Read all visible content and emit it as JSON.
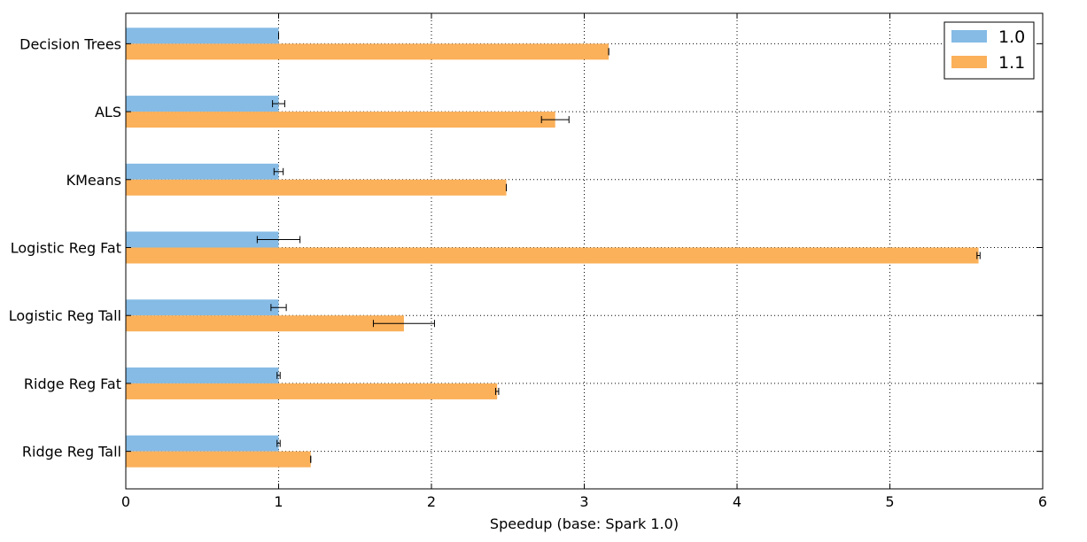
{
  "chart_data": {
    "type": "bar",
    "orientation": "horizontal",
    "categories": [
      "Decision Trees",
      "ALS",
      "KMeans",
      "Logistic Reg Fat",
      "Logistic Reg Tall",
      "Ridge Reg Fat",
      "Ridge Reg Tall"
    ],
    "series": [
      {
        "name": "1.0",
        "color": "#85bbe5",
        "values": [
          1.0,
          1.0,
          1.0,
          1.0,
          1.0,
          1.0,
          1.0
        ],
        "errors": [
          0.0,
          0.04,
          0.03,
          0.14,
          0.05,
          0.01,
          0.01
        ]
      },
      {
        "name": "1.1",
        "color": "#fbb05a",
        "values": [
          3.16,
          2.81,
          2.49,
          5.58,
          1.82,
          2.43,
          1.21
        ],
        "errors": [
          0.0,
          0.09,
          0.0,
          0.01,
          0.2,
          0.01,
          0.0
        ]
      }
    ],
    "xlabel": "Speedup (base: Spark 1.0)",
    "ylabel": "",
    "xlim": [
      0,
      6
    ],
    "xticks": [
      "0",
      "1",
      "2",
      "3",
      "4",
      "5",
      "6"
    ],
    "grid": true,
    "legend_position": "top-right"
  }
}
